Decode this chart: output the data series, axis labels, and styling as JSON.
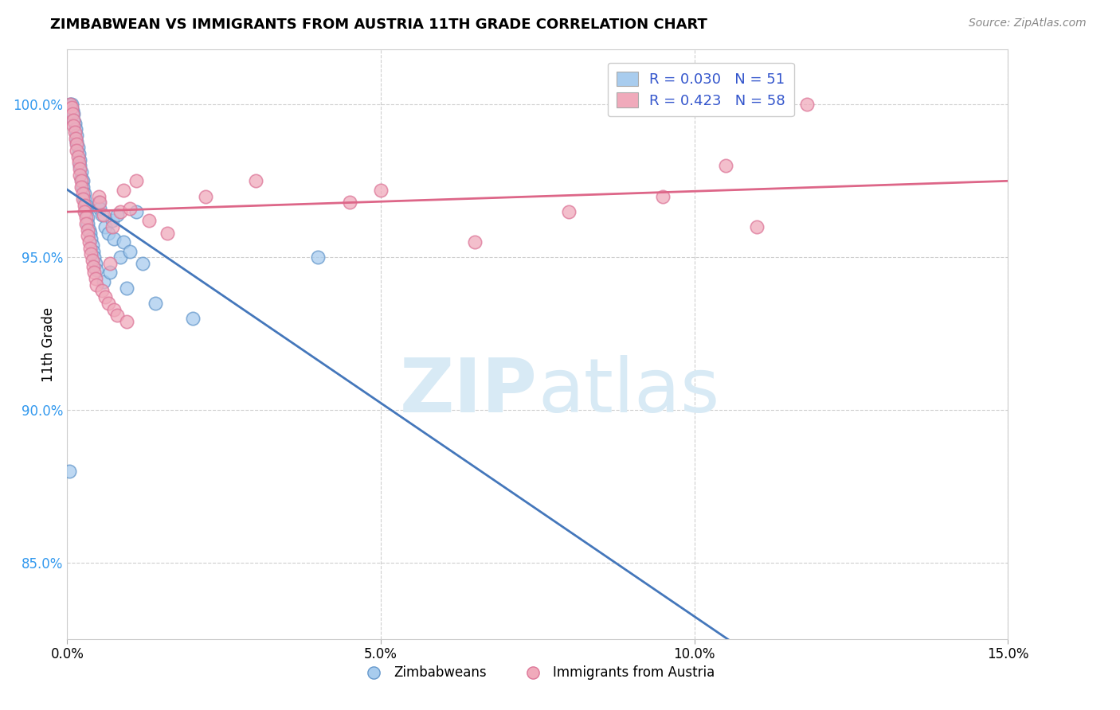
{
  "title": "ZIMBABWEAN VS IMMIGRANTS FROM AUSTRIA 11TH GRADE CORRELATION CHART",
  "source": "Source: ZipAtlas.com",
  "xlabel_blue": "Zimbabweans",
  "xlabel_pink": "Immigrants from Austria",
  "ylabel": "11th Grade",
  "xlim": [
    0.0,
    15.0
  ],
  "ylim": [
    82.5,
    101.8
  ],
  "xticks": [
    0.0,
    5.0,
    10.0,
    15.0
  ],
  "xtick_labels": [
    "0.0%",
    "5.0%",
    "10.0%",
    "15.0%"
  ],
  "yticks": [
    85.0,
    90.0,
    95.0,
    100.0
  ],
  "ytick_labels": [
    "85.0%",
    "90.0%",
    "95.0%",
    "100.0%"
  ],
  "R_blue": 0.03,
  "N_blue": 51,
  "R_pink": 0.423,
  "N_pink": 58,
  "blue_color": "#A8CCEE",
  "pink_color": "#F0AABB",
  "blue_edge_color": "#6699CC",
  "pink_edge_color": "#DD7799",
  "blue_line_color": "#4477BB",
  "pink_line_color": "#DD6688",
  "watermark_zip": "ZIP",
  "watermark_atlas": "atlas",
  "watermark_color": "#D8EAF5",
  "blue_x": [
    0.05,
    0.07,
    0.08,
    0.1,
    0.1,
    0.12,
    0.13,
    0.15,
    0.15,
    0.17,
    0.18,
    0.2,
    0.2,
    0.22,
    0.23,
    0.25,
    0.25,
    0.27,
    0.28,
    0.3,
    0.3,
    0.32,
    0.33,
    0.35,
    0.37,
    0.38,
    0.4,
    0.42,
    0.43,
    0.45,
    0.47,
    0.5,
    0.52,
    0.55,
    0.58,
    0.6,
    0.65,
    0.68,
    0.72,
    0.75,
    0.8,
    0.85,
    0.9,
    0.95,
    1.0,
    1.1,
    1.2,
    1.4,
    2.0,
    4.0,
    0.03
  ],
  "blue_y": [
    100.0,
    100.0,
    99.8,
    99.7,
    99.5,
    99.4,
    99.2,
    99.0,
    98.8,
    98.6,
    98.4,
    98.2,
    98.0,
    97.8,
    97.6,
    97.5,
    97.3,
    97.1,
    96.9,
    96.7,
    96.5,
    96.3,
    96.1,
    95.9,
    95.8,
    95.6,
    95.4,
    95.2,
    95.0,
    94.8,
    94.6,
    96.8,
    96.6,
    96.4,
    94.2,
    96.0,
    95.8,
    94.5,
    96.2,
    95.6,
    96.4,
    95.0,
    95.5,
    94.0,
    95.2,
    96.5,
    94.8,
    93.5,
    93.0,
    95.0,
    88.0
  ],
  "pink_x": [
    0.05,
    0.07,
    0.08,
    0.1,
    0.1,
    0.12,
    0.13,
    0.15,
    0.15,
    0.17,
    0.18,
    0.2,
    0.2,
    0.22,
    0.23,
    0.25,
    0.25,
    0.27,
    0.28,
    0.3,
    0.3,
    0.32,
    0.33,
    0.35,
    0.37,
    0.38,
    0.4,
    0.42,
    0.43,
    0.45,
    0.47,
    0.5,
    0.52,
    0.55,
    0.58,
    0.6,
    0.65,
    0.68,
    0.72,
    0.75,
    0.8,
    0.85,
    0.9,
    0.95,
    1.0,
    1.1,
    1.3,
    1.6,
    2.2,
    3.0,
    4.5,
    5.0,
    6.5,
    8.0,
    9.5,
    10.5,
    11.0,
    11.8
  ],
  "pink_y": [
    100.0,
    99.9,
    99.7,
    99.5,
    99.3,
    99.1,
    98.9,
    98.7,
    98.5,
    98.3,
    98.1,
    97.9,
    97.7,
    97.5,
    97.3,
    97.1,
    96.9,
    96.7,
    96.5,
    96.3,
    96.1,
    95.9,
    95.7,
    95.5,
    95.3,
    95.1,
    94.9,
    94.7,
    94.5,
    94.3,
    94.1,
    97.0,
    96.8,
    93.9,
    96.4,
    93.7,
    93.5,
    94.8,
    96.0,
    93.3,
    93.1,
    96.5,
    97.2,
    92.9,
    96.6,
    97.5,
    96.2,
    95.8,
    97.0,
    97.5,
    96.8,
    97.2,
    95.5,
    96.5,
    97.0,
    98.0,
    96.0,
    100.0
  ]
}
